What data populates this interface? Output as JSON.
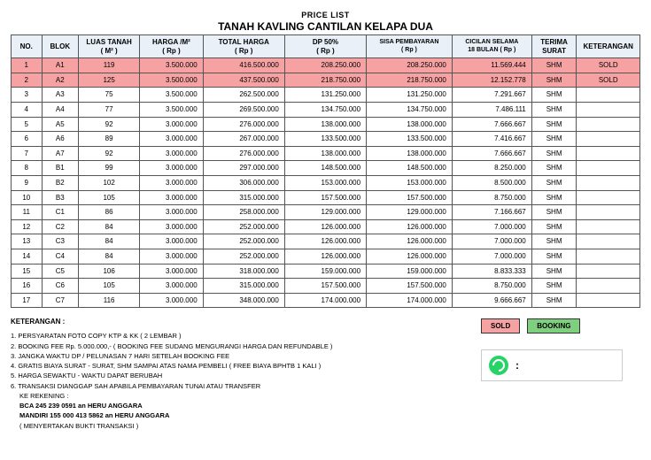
{
  "title": {
    "line1": "PRICE LIST",
    "line2": "TANAH KAVLING CANTILAN KELAPA DUA"
  },
  "headers": {
    "no": "NO.",
    "blok": "BLOK",
    "luas": "LUAS TANAH",
    "luas_unit": "( M² )",
    "harga": "HARGA  /M²",
    "harga_unit": "( Rp )",
    "total": "TOTAL HARGA",
    "total_unit": "( Rp )",
    "dp": "DP 50%",
    "dp_unit": "( Rp )",
    "sisa": "SISA PEMBAYARAN",
    "sisa_unit": "( Rp )",
    "cicilan": "CICILAN SELAMA",
    "cicilan_unit": "18 BULAN ( Rp )",
    "terima": "TERIMA",
    "terima_unit": "SURAT",
    "ket": "KETERANGAN"
  },
  "rows": [
    {
      "no": "1",
      "blok": "A1",
      "luas": "119",
      "harga": "3.500.000",
      "total": "416.500.000",
      "dp": "208.250.000",
      "sisa": "208.250.000",
      "cicilan": "11.569.444",
      "terima": "SHM",
      "ket": "SOLD",
      "status": "sold"
    },
    {
      "no": "2",
      "blok": "A2",
      "luas": "125",
      "harga": "3.500.000",
      "total": "437.500.000",
      "dp": "218.750.000",
      "sisa": "218.750.000",
      "cicilan": "12.152.778",
      "terima": "SHM",
      "ket": "SOLD",
      "status": "sold"
    },
    {
      "no": "3",
      "blok": "A3",
      "luas": "75",
      "harga": "3.500.000",
      "total": "262.500.000",
      "dp": "131.250.000",
      "sisa": "131.250.000",
      "cicilan": "7.291.667",
      "terima": "SHM",
      "ket": ""
    },
    {
      "no": "4",
      "blok": "A4",
      "luas": "77",
      "harga": "3.500.000",
      "total": "269.500.000",
      "dp": "134.750.000",
      "sisa": "134.750.000",
      "cicilan": "7.486.111",
      "terima": "SHM",
      "ket": ""
    },
    {
      "no": "5",
      "blok": "A5",
      "luas": "92",
      "harga": "3.000.000",
      "total": "276.000.000",
      "dp": "138.000.000",
      "sisa": "138.000.000",
      "cicilan": "7.666.667",
      "terima": "SHM",
      "ket": ""
    },
    {
      "no": "6",
      "blok": "A6",
      "luas": "89",
      "harga": "3.000.000",
      "total": "267.000.000",
      "dp": "133.500.000",
      "sisa": "133.500.000",
      "cicilan": "7.416.667",
      "terima": "SHM",
      "ket": ""
    },
    {
      "no": "7",
      "blok": "A7",
      "luas": "92",
      "harga": "3.000.000",
      "total": "276.000.000",
      "dp": "138.000.000",
      "sisa": "138.000.000",
      "cicilan": "7.666.667",
      "terima": "SHM",
      "ket": ""
    },
    {
      "no": "8",
      "blok": "B1",
      "luas": "99",
      "harga": "3.000.000",
      "total": "297.000.000",
      "dp": "148.500.000",
      "sisa": "148.500.000",
      "cicilan": "8.250.000",
      "terima": "SHM",
      "ket": ""
    },
    {
      "no": "9",
      "blok": "B2",
      "luas": "102",
      "harga": "3.000.000",
      "total": "306.000.000",
      "dp": "153.000.000",
      "sisa": "153.000.000",
      "cicilan": "8.500.000",
      "terima": "SHM",
      "ket": ""
    },
    {
      "no": "10",
      "blok": "B3",
      "luas": "105",
      "harga": "3.000.000",
      "total": "315.000.000",
      "dp": "157.500.000",
      "sisa": "157.500.000",
      "cicilan": "8.750.000",
      "terima": "SHM",
      "ket": ""
    },
    {
      "no": "11",
      "blok": "C1",
      "luas": "86",
      "harga": "3.000.000",
      "total": "258.000.000",
      "dp": "129.000.000",
      "sisa": "129.000.000",
      "cicilan": "7.166.667",
      "terima": "SHM",
      "ket": ""
    },
    {
      "no": "12",
      "blok": "C2",
      "luas": "84",
      "harga": "3.000.000",
      "total": "252.000.000",
      "dp": "126.000.000",
      "sisa": "126.000.000",
      "cicilan": "7.000.000",
      "terima": "SHM",
      "ket": ""
    },
    {
      "no": "13",
      "blok": "C3",
      "luas": "84",
      "harga": "3.000.000",
      "total": "252.000.000",
      "dp": "126.000.000",
      "sisa": "126.000.000",
      "cicilan": "7.000.000",
      "terima": "SHM",
      "ket": ""
    },
    {
      "no": "14",
      "blok": "C4",
      "luas": "84",
      "harga": "3.000.000",
      "total": "252.000.000",
      "dp": "126.000.000",
      "sisa": "126.000.000",
      "cicilan": "7.000.000",
      "terima": "SHM",
      "ket": ""
    },
    {
      "no": "15",
      "blok": "C5",
      "luas": "106",
      "harga": "3.000.000",
      "total": "318.000.000",
      "dp": "159.000.000",
      "sisa": "159.000.000",
      "cicilan": "8.833.333",
      "terima": "SHM",
      "ket": ""
    },
    {
      "no": "16",
      "blok": "C6",
      "luas": "105",
      "harga": "3.000.000",
      "total": "315.000.000",
      "dp": "157.500.000",
      "sisa": "157.500.000",
      "cicilan": "8.750.000",
      "terima": "SHM",
      "ket": ""
    },
    {
      "no": "17",
      "blok": "C7",
      "luas": "116",
      "harga": "3.000.000",
      "total": "348.000.000",
      "dp": "174.000.000",
      "sisa": "174.000.000",
      "cicilan": "9.666.667",
      "terima": "SHM",
      "ket": ""
    }
  ],
  "notes": {
    "title": "KETERANGAN :",
    "items": [
      "1. PERSYARATAN FOTO COPY KTP & KK ( 2 LEMBAR )",
      "2. BOOKING FEE Rp. 5.000.000,- ( BOOKING FEE SUDANG MENGURANGI HARGA DAN REFUNDABLE )",
      "3. JANGKA WAKTU DP / PELUNASAN 7 HARI SETELAH BOOKING FEE",
      "4. GRATIS BIAYA SURAT - SURAT, SHM  SAMPAI ATAS NAMA PEMBELI ( FREE BIAYA BPHTB 1 KALI )",
      "5. HARGA SEWAKTU - WAKTU DAPAT BERUBAH",
      "6. TRANSAKSI DIANGGAP SAH APABILA PEMBAYARAN TUNAI ATAU TRANSFER"
    ],
    "rekening_label": "KE REKENING :",
    "bank1": "BCA   245 239 0591  an  HERU ANGGARA",
    "bank2": "MANDIRI   155 000 413 5862  an  HERU ANGGARA",
    "footer": "( MENYERTAKAN BUKTI TRANSAKSI )"
  },
  "legend": {
    "sold": "SOLD",
    "booking": "BOOKING"
  },
  "wa": {
    "colon": ":"
  }
}
